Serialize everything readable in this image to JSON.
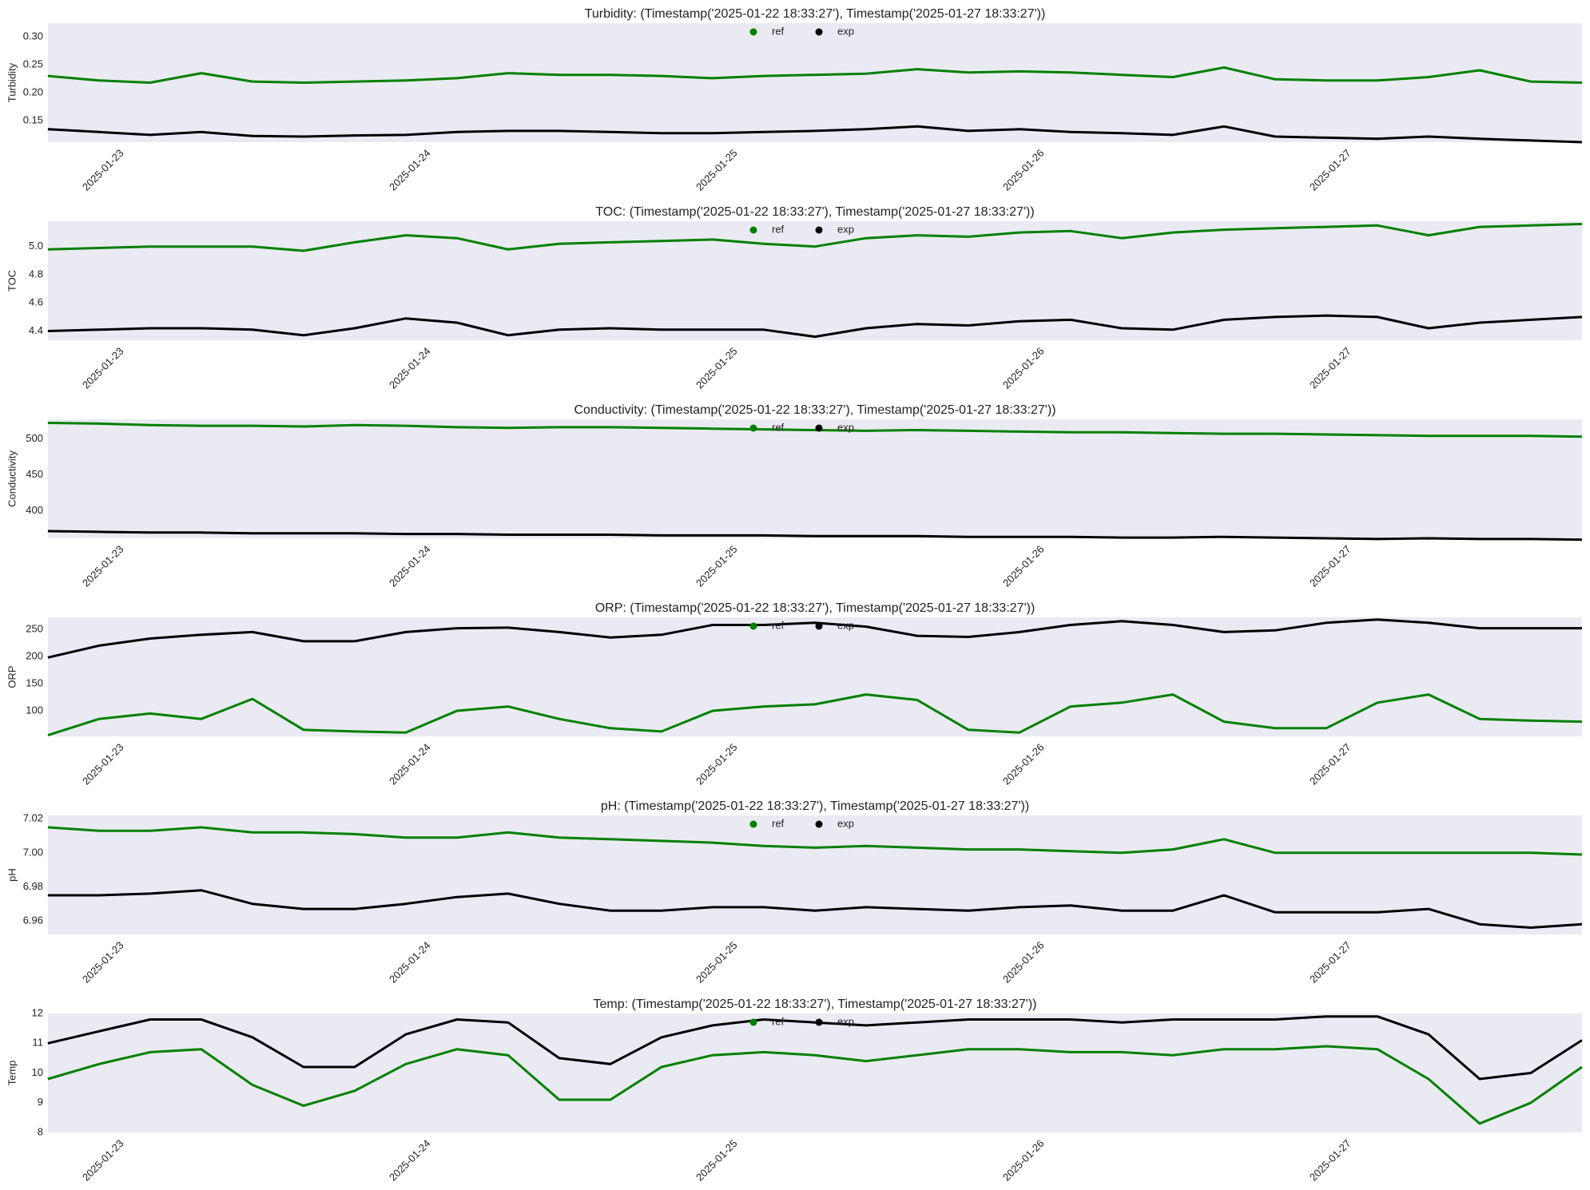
{
  "chart_data": [
    {
      "type": "line",
      "title": "Turbidity: (Timestamp('2025-01-22 18:33:27'), Timestamp('2025-01-27 18:33:27'))",
      "ylabel": "Turbidity",
      "legend": "upper center",
      "grid": false,
      "xlim": [
        "2025-01-22T18:33:27",
        "2025-01-27T18:33:27"
      ],
      "xticks": [
        "2025-01-23",
        "2025-01-24",
        "2025-01-25",
        "2025-01-26",
        "2025-01-27"
      ],
      "ylim": [
        0.112,
        0.324
      ],
      "yticks": [
        0.15,
        {
          "value": 0.2,
          "label": "0.20"
        },
        0.25,
        {
          "value": 0.3,
          "label": "0.30"
        }
      ],
      "x": [
        "2025-01-22T18:33",
        "2025-01-22T22:33",
        "2025-01-23T02:33",
        "2025-01-23T06:33",
        "2025-01-23T10:33",
        "2025-01-23T14:33",
        "2025-01-23T18:33",
        "2025-01-23T22:33",
        "2025-01-24T02:33",
        "2025-01-24T06:33",
        "2025-01-24T10:33",
        "2025-01-24T14:33",
        "2025-01-24T18:33",
        "2025-01-24T22:33",
        "2025-01-25T02:33",
        "2025-01-25T06:33",
        "2025-01-25T10:33",
        "2025-01-25T14:33",
        "2025-01-25T18:33",
        "2025-01-25T22:33",
        "2025-01-26T02:33",
        "2025-01-26T06:33",
        "2025-01-26T10:33",
        "2025-01-26T14:33",
        "2025-01-26T18:33",
        "2025-01-26T22:33",
        "2025-01-27T02:33",
        "2025-01-27T06:33",
        "2025-01-27T10:33",
        "2025-01-27T14:33",
        "2025-01-27T18:33"
      ],
      "series": [
        {
          "name": "ref",
          "color": "#008000",
          "values": [
            0.23,
            0.222,
            0.218,
            0.235,
            0.22,
            0.218,
            0.22,
            0.222,
            0.226,
            0.235,
            0.232,
            0.232,
            0.23,
            0.226,
            0.23,
            0.232,
            0.234,
            0.242,
            0.236,
            0.238,
            0.236,
            0.232,
            0.228,
            0.245,
            0.224,
            0.222,
            0.222,
            0.228,
            0.24,
            0.22,
            0.218
          ]
        },
        {
          "name": "exp",
          "color": "#000000",
          "values": [
            0.135,
            0.13,
            0.125,
            0.13,
            0.123,
            0.122,
            0.124,
            0.125,
            0.13,
            0.132,
            0.132,
            0.13,
            0.128,
            0.128,
            0.13,
            0.132,
            0.135,
            0.14,
            0.132,
            0.135,
            0.13,
            0.128,
            0.125,
            0.14,
            0.122,
            0.12,
            0.118,
            0.122,
            0.118,
            0.115,
            0.112
          ]
        }
      ]
    },
    {
      "type": "line",
      "title": "TOC: (Timestamp('2025-01-22 18:33:27'), Timestamp('2025-01-27 18:33:27'))",
      "ylabel": "TOC",
      "legend": "upper center",
      "grid": false,
      "xlim": [
        "2025-01-22T18:33:27",
        "2025-01-27T18:33:27"
      ],
      "xticks": [
        "2025-01-23",
        "2025-01-24",
        "2025-01-25",
        "2025-01-26",
        "2025-01-27"
      ],
      "ylim": [
        4.335,
        5.18
      ],
      "yticks": [
        4.4,
        4.6,
        4.8,
        {
          "value": 5.0,
          "label": "5.0"
        }
      ],
      "x": [
        "2025-01-22T18:33",
        "2025-01-22T22:33",
        "2025-01-23T02:33",
        "2025-01-23T06:33",
        "2025-01-23T10:33",
        "2025-01-23T14:33",
        "2025-01-23T18:33",
        "2025-01-23T22:33",
        "2025-01-24T02:33",
        "2025-01-24T06:33",
        "2025-01-24T10:33",
        "2025-01-24T14:33",
        "2025-01-24T18:33",
        "2025-01-24T22:33",
        "2025-01-25T02:33",
        "2025-01-25T06:33",
        "2025-01-25T10:33",
        "2025-01-25T14:33",
        "2025-01-25T18:33",
        "2025-01-25T22:33",
        "2025-01-26T02:33",
        "2025-01-26T06:33",
        "2025-01-26T10:33",
        "2025-01-26T14:33",
        "2025-01-26T18:33",
        "2025-01-26T22:33",
        "2025-01-27T02:33",
        "2025-01-27T06:33",
        "2025-01-27T10:33",
        "2025-01-27T14:33",
        "2025-01-27T18:33"
      ],
      "series": [
        {
          "name": "ref",
          "color": "#008000",
          "values": [
            4.98,
            4.99,
            5.0,
            5.0,
            5.0,
            4.97,
            5.03,
            5.08,
            5.06,
            4.98,
            5.02,
            5.03,
            5.04,
            5.05,
            5.02,
            5.0,
            5.06,
            5.08,
            5.07,
            5.1,
            5.11,
            5.06,
            5.1,
            5.12,
            5.13,
            5.14,
            5.15,
            5.08,
            5.14,
            5.15,
            5.16
          ]
        },
        {
          "name": "exp",
          "color": "#000000",
          "values": [
            4.4,
            4.41,
            4.42,
            4.42,
            4.41,
            4.37,
            4.42,
            4.49,
            4.46,
            4.37,
            4.41,
            4.42,
            4.41,
            4.41,
            4.41,
            4.36,
            4.42,
            4.45,
            4.44,
            4.47,
            4.48,
            4.42,
            4.41,
            4.48,
            4.5,
            4.51,
            4.5,
            4.42,
            4.46,
            4.48,
            4.5
          ]
        }
      ]
    },
    {
      "type": "line",
      "title": "Conductivity: (Timestamp('2025-01-22 18:33:27'), Timestamp('2025-01-27 18:33:27'))",
      "ylabel": "Conductivity",
      "legend": "upper center",
      "grid": false,
      "xlim": [
        "2025-01-22T18:33:27",
        "2025-01-27T18:33:27"
      ],
      "xticks": [
        "2025-01-23",
        "2025-01-24",
        "2025-01-25",
        "2025-01-26",
        "2025-01-27"
      ],
      "ylim": [
        362,
        527
      ],
      "yticks": [
        400,
        450,
        500
      ],
      "x": [
        "2025-01-22T18:33",
        "2025-01-22T22:33",
        "2025-01-23T02:33",
        "2025-01-23T06:33",
        "2025-01-23T10:33",
        "2025-01-23T14:33",
        "2025-01-23T18:33",
        "2025-01-23T22:33",
        "2025-01-24T02:33",
        "2025-01-24T06:33",
        "2025-01-24T10:33",
        "2025-01-24T14:33",
        "2025-01-24T18:33",
        "2025-01-24T22:33",
        "2025-01-25T02:33",
        "2025-01-25T06:33",
        "2025-01-25T10:33",
        "2025-01-25T14:33",
        "2025-01-25T18:33",
        "2025-01-25T22:33",
        "2025-01-26T02:33",
        "2025-01-26T06:33",
        "2025-01-26T10:33",
        "2025-01-26T14:33",
        "2025-01-26T18:33",
        "2025-01-26T22:33",
        "2025-01-27T02:33",
        "2025-01-27T06:33",
        "2025-01-27T10:33",
        "2025-01-27T14:33",
        "2025-01-27T18:33"
      ],
      "series": [
        {
          "name": "ref",
          "color": "#008000",
          "values": [
            522,
            521,
            519,
            518,
            518,
            517,
            519,
            518,
            516,
            515,
            516,
            516,
            515,
            514,
            513,
            512,
            511,
            512,
            511,
            510,
            509,
            509,
            508,
            507,
            507,
            506,
            505,
            504,
            504,
            504,
            503
          ]
        },
        {
          "name": "exp",
          "color": "#000000",
          "values": [
            372,
            371,
            370,
            370,
            369,
            369,
            369,
            368,
            368,
            367,
            367,
            367,
            366,
            366,
            366,
            365,
            365,
            365,
            364,
            364,
            364,
            363,
            363,
            364,
            363,
            362,
            361,
            362,
            361,
            361,
            360
          ]
        }
      ]
    },
    {
      "type": "line",
      "title": "ORP: (Timestamp('2025-01-22 18:33:27'), Timestamp('2025-01-27 18:33:27'))",
      "ylabel": "ORP",
      "legend": "upper center",
      "grid": false,
      "xlim": [
        "2025-01-22T18:33:27",
        "2025-01-27T18:33:27"
      ],
      "xticks": [
        "2025-01-23",
        "2025-01-24",
        "2025-01-25",
        "2025-01-26",
        "2025-01-27"
      ],
      "ylim": [
        53,
        272
      ],
      "yticks": [
        100,
        150,
        200,
        250
      ],
      "x": [
        "2025-01-22T18:33",
        "2025-01-22T22:33",
        "2025-01-23T02:33",
        "2025-01-23T06:33",
        "2025-01-23T10:33",
        "2025-01-23T14:33",
        "2025-01-23T18:33",
        "2025-01-23T22:33",
        "2025-01-24T02:33",
        "2025-01-24T06:33",
        "2025-01-24T10:33",
        "2025-01-24T14:33",
        "2025-01-24T18:33",
        "2025-01-24T22:33",
        "2025-01-25T02:33",
        "2025-01-25T06:33",
        "2025-01-25T10:33",
        "2025-01-25T14:33",
        "2025-01-25T18:33",
        "2025-01-25T22:33",
        "2025-01-26T02:33",
        "2025-01-26T06:33",
        "2025-01-26T10:33",
        "2025-01-26T14:33",
        "2025-01-26T18:33",
        "2025-01-26T22:33",
        "2025-01-27T02:33",
        "2025-01-27T06:33",
        "2025-01-27T10:33",
        "2025-01-27T14:33",
        "2025-01-27T18:33"
      ],
      "series": [
        {
          "name": "ref",
          "color": "#008000",
          "values": [
            55,
            85,
            95,
            85,
            122,
            65,
            62,
            60,
            100,
            108,
            85,
            68,
            62,
            100,
            108,
            112,
            130,
            120,
            65,
            60,
            108,
            115,
            130,
            80,
            68,
            68,
            115,
            130,
            85,
            82,
            80
          ]
        },
        {
          "name": "exp",
          "color": "#000000",
          "values": [
            198,
            220,
            233,
            240,
            245,
            228,
            228,
            245,
            252,
            253,
            245,
            235,
            240,
            258,
            258,
            262,
            255,
            238,
            236,
            245,
            258,
            265,
            258,
            245,
            248,
            262,
            268,
            262,
            252,
            252,
            252
          ]
        }
      ]
    },
    {
      "type": "line",
      "title": "pH: (Timestamp('2025-01-22 18:33:27'), Timestamp('2025-01-27 18:33:27'))",
      "ylabel": "pH",
      "legend": "upper center",
      "grid": false,
      "xlim": [
        "2025-01-22T18:33:27",
        "2025-01-27T18:33:27"
      ],
      "xticks": [
        "2025-01-23",
        "2025-01-24",
        "2025-01-25",
        "2025-01-26",
        "2025-01-27"
      ],
      "ylim": [
        6.952,
        7.022
      ],
      "yticks": [
        6.96,
        6.98,
        {
          "value": 7.0,
          "label": "7.00"
        },
        7.02
      ],
      "x": [
        "2025-01-22T18:33",
        "2025-01-22T22:33",
        "2025-01-23T02:33",
        "2025-01-23T06:33",
        "2025-01-23T10:33",
        "2025-01-23T14:33",
        "2025-01-23T18:33",
        "2025-01-23T22:33",
        "2025-01-24T02:33",
        "2025-01-24T06:33",
        "2025-01-24T10:33",
        "2025-01-24T14:33",
        "2025-01-24T18:33",
        "2025-01-24T22:33",
        "2025-01-25T02:33",
        "2025-01-25T06:33",
        "2025-01-25T10:33",
        "2025-01-25T14:33",
        "2025-01-25T18:33",
        "2025-01-25T22:33",
        "2025-01-26T02:33",
        "2025-01-26T06:33",
        "2025-01-26T10:33",
        "2025-01-26T14:33",
        "2025-01-26T18:33",
        "2025-01-26T22:33",
        "2025-01-27T02:33",
        "2025-01-27T06:33",
        "2025-01-27T10:33",
        "2025-01-27T14:33",
        "2025-01-27T18:33"
      ],
      "series": [
        {
          "name": "ref",
          "color": "#008000",
          "values": [
            7.015,
            7.013,
            7.013,
            7.015,
            7.012,
            7.012,
            7.011,
            7.009,
            7.009,
            7.012,
            7.009,
            7.008,
            7.007,
            7.006,
            7.004,
            7.003,
            7.004,
            7.003,
            7.002,
            7.002,
            7.001,
            7.0,
            7.002,
            7.008,
            7.0,
            7.0,
            7.0,
            7.0,
            7.0,
            7.0,
            6.999
          ]
        },
        {
          "name": "exp",
          "color": "#000000",
          "values": [
            6.975,
            6.975,
            6.976,
            6.978,
            6.97,
            6.967,
            6.967,
            6.97,
            6.974,
            6.976,
            6.97,
            6.966,
            6.966,
            6.968,
            6.968,
            6.966,
            6.968,
            6.967,
            6.966,
            6.968,
            6.969,
            6.966,
            6.966,
            6.975,
            6.965,
            6.965,
            6.965,
            6.967,
            6.958,
            6.956,
            6.958
          ]
        }
      ]
    },
    {
      "type": "line",
      "title": "Temp: (Timestamp('2025-01-22 18:33:27'), Timestamp('2025-01-27 18:33:27'))",
      "ylabel": "Temp",
      "legend": "upper center",
      "grid": false,
      "xlim": [
        "2025-01-22T18:33:27",
        "2025-01-27T18:33:27"
      ],
      "xticks": [
        "2025-01-23",
        "2025-01-24",
        "2025-01-25",
        "2025-01-26",
        "2025-01-27"
      ],
      "ylim": [
        8,
        12
      ],
      "yticks": [
        8,
        9,
        10,
        11,
        12
      ],
      "x": [
        "2025-01-22T18:33",
        "2025-01-22T22:33",
        "2025-01-23T02:33",
        "2025-01-23T06:33",
        "2025-01-23T10:33",
        "2025-01-23T14:33",
        "2025-01-23T18:33",
        "2025-01-23T22:33",
        "2025-01-24T02:33",
        "2025-01-24T06:33",
        "2025-01-24T10:33",
        "2025-01-24T14:33",
        "2025-01-24T18:33",
        "2025-01-24T22:33",
        "2025-01-25T02:33",
        "2025-01-25T06:33",
        "2025-01-25T10:33",
        "2025-01-25T14:33",
        "2025-01-25T18:33",
        "2025-01-25T22:33",
        "2025-01-26T02:33",
        "2025-01-26T06:33",
        "2025-01-26T10:33",
        "2025-01-26T14:33",
        "2025-01-26T18:33",
        "2025-01-26T22:33",
        "2025-01-27T02:33",
        "2025-01-27T06:33",
        "2025-01-27T10:33",
        "2025-01-27T14:33",
        "2025-01-27T18:33"
      ],
      "series": [
        {
          "name": "ref",
          "color": "#008000",
          "values": [
            9.8,
            10.3,
            10.7,
            10.8,
            9.6,
            8.9,
            9.4,
            10.3,
            10.8,
            10.6,
            9.1,
            9.1,
            10.2,
            10.6,
            10.7,
            10.6,
            10.4,
            10.6,
            10.8,
            10.8,
            10.7,
            10.7,
            10.6,
            10.8,
            10.8,
            10.9,
            10.8,
            9.8,
            8.3,
            9.0,
            10.2
          ]
        },
        {
          "name": "exp",
          "color": "#000000",
          "values": [
            11.0,
            11.4,
            11.8,
            11.8,
            11.2,
            10.2,
            10.2,
            11.3,
            11.8,
            11.7,
            10.5,
            10.3,
            11.2,
            11.6,
            11.8,
            11.7,
            11.6,
            11.7,
            11.8,
            11.8,
            11.8,
            11.7,
            11.8,
            11.8,
            11.8,
            11.9,
            11.9,
            11.3,
            9.8,
            10.0,
            11.1
          ]
        }
      ]
    }
  ]
}
